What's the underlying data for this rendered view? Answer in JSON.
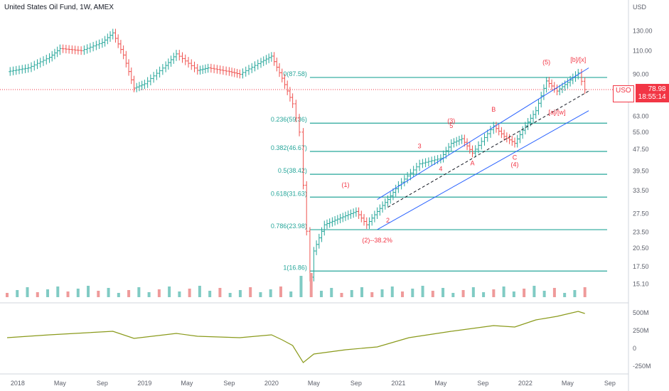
{
  "title": "United States Oil Fund, 1W, AMEX",
  "currency": "USD",
  "last_price": {
    "symbol": "USO",
    "value": "78.98",
    "countdown": "18:55:14",
    "color": "#f23645"
  },
  "chart_data": {
    "type": "line",
    "symbol": "USO",
    "interval": "1W",
    "exchange": "AMEX",
    "x_axis_labels": [
      "2018",
      "May",
      "Sep",
      "2019",
      "May",
      "Sep",
      "2020",
      "May",
      "Sep",
      "2021",
      "May",
      "Sep",
      "2022",
      "May",
      "Sep"
    ],
    "price_axis_labels": [
      "130.00",
      "110.00",
      "90.00",
      "63.00",
      "55.00",
      "47.50",
      "39.50",
      "33.50",
      "27.50",
      "23.50",
      "20.50",
      "17.50",
      "15.10"
    ],
    "price_axis_scale": "log",
    "price_range": [
      13.5,
      150
    ],
    "indicator_axis_labels": [
      "500M",
      "250M",
      "0",
      "-250M"
    ],
    "indicator_range": [
      -300,
      600
    ],
    "fib_levels": [
      {
        "label": "0(87.58)",
        "price": 87.58
      },
      {
        "label": "0.236(59.36)",
        "price": 59.36
      },
      {
        "label": "0.382(46.67)",
        "price": 46.67
      },
      {
        "label": "0.5(38.42)",
        "price": 38.42
      },
      {
        "label": "0.618(31.63)",
        "price": 31.63
      },
      {
        "label": "0.786(23.98)",
        "price": 23.98
      },
      {
        "label": "1(16.86)",
        "price": 16.86
      }
    ],
    "price_series": [
      {
        "t": "2017-12",
        "close": 92
      },
      {
        "t": "2018-02",
        "close": 95
      },
      {
        "t": "2018-04",
        "close": 104
      },
      {
        "t": "2018-05",
        "close": 112
      },
      {
        "t": "2018-07",
        "close": 110
      },
      {
        "t": "2018-09",
        "close": 118
      },
      {
        "t": "2018-10",
        "close": 128
      },
      {
        "t": "2018-11",
        "close": 106
      },
      {
        "t": "2018-12",
        "close": 80
      },
      {
        "t": "2019-01",
        "close": 83
      },
      {
        "t": "2019-03",
        "close": 97
      },
      {
        "t": "2019-04",
        "close": 107
      },
      {
        "t": "2019-06",
        "close": 93
      },
      {
        "t": "2019-07",
        "close": 95
      },
      {
        "t": "2019-09",
        "close": 92
      },
      {
        "t": "2019-10",
        "close": 90
      },
      {
        "t": "2019-12",
        "close": 100
      },
      {
        "t": "2020-01",
        "close": 105
      },
      {
        "t": "2020-02",
        "close": 87
      },
      {
        "t": "2020-03",
        "close": 70
      },
      {
        "t": "2020-03-20",
        "close": 55
      },
      {
        "t": "2020-04",
        "close": 35
      },
      {
        "t": "2020-04-20",
        "close": 16
      },
      {
        "t": "2020-05",
        "close": 20
      },
      {
        "t": "2020-06",
        "close": 25
      },
      {
        "t": "2020-07",
        "close": 26
      },
      {
        "t": "2020-08",
        "close": 27
      },
      {
        "t": "2020-09",
        "close": 28
      },
      {
        "t": "2020-10",
        "close": 25
      },
      {
        "t": "2020-11",
        "close": 28
      },
      {
        "t": "2020-12",
        "close": 31
      },
      {
        "t": "2021-01",
        "close": 35
      },
      {
        "t": "2021-03",
        "close": 42
      },
      {
        "t": "2021-05",
        "close": 44
      },
      {
        "t": "2021-06",
        "close": 50
      },
      {
        "t": "2021-07",
        "close": 52
      },
      {
        "t": "2021-08",
        "close": 46
      },
      {
        "t": "2021-10",
        "close": 58
      },
      {
        "t": "2021-11",
        "close": 53
      },
      {
        "t": "2021-12",
        "close": 50
      },
      {
        "t": "2022-01",
        "close": 58
      },
      {
        "t": "2022-02",
        "close": 66
      },
      {
        "t": "2022-03",
        "close": 85
      },
      {
        "t": "2022-04",
        "close": 78
      },
      {
        "t": "2022-05",
        "close": 84
      },
      {
        "t": "2022-06",
        "close": 91
      },
      {
        "t": "2022-06-20",
        "close": 79
      }
    ],
    "indicator_series": [
      {
        "t": "2017-12",
        "v": 150
      },
      {
        "t": "2018-04",
        "v": 190
      },
      {
        "t": "2018-10",
        "v": 240
      },
      {
        "t": "2018-12",
        "v": 140
      },
      {
        "t": "2019-04",
        "v": 210
      },
      {
        "t": "2019-06",
        "v": 170
      },
      {
        "t": "2019-10",
        "v": 150
      },
      {
        "t": "2020-01",
        "v": 190
      },
      {
        "t": "2020-02",
        "v": 120
      },
      {
        "t": "2020-03",
        "v": 40
      },
      {
        "t": "2020-04",
        "v": -200
      },
      {
        "t": "2020-05",
        "v": -80
      },
      {
        "t": "2020-08",
        "v": -20
      },
      {
        "t": "2020-11",
        "v": 20
      },
      {
        "t": "2021-02",
        "v": 150
      },
      {
        "t": "2021-06",
        "v": 240
      },
      {
        "t": "2021-10",
        "v": 320
      },
      {
        "t": "2021-12",
        "v": 300
      },
      {
        "t": "2022-02",
        "v": 400
      },
      {
        "t": "2022-04",
        "v": 450
      },
      {
        "t": "2022-06",
        "v": 520
      },
      {
        "t": "2022-06-20",
        "v": 490
      }
    ],
    "volume_bars": 58,
    "wave_labels": [
      {
        "text": "(1)",
        "t": "2020-08",
        "price": 34.5,
        "color": "#f23645"
      },
      {
        "text": "(2)--38.2%",
        "t": "2020-11",
        "price": 21.5,
        "color": "#f23645"
      },
      {
        "text": "2",
        "t": "2020-12",
        "price": 25.5,
        "color": "#f23645"
      },
      {
        "text": "3",
        "t": "2021-03",
        "price": 48,
        "color": "#f23645"
      },
      {
        "text": "4",
        "t": "2021-05",
        "price": 39.5,
        "color": "#f23645"
      },
      {
        "text": "5",
        "t": "2021-06",
        "price": 57,
        "color": "#f23645"
      },
      {
        "text": "(3)",
        "t": "2021-06",
        "price": 59.5,
        "color": "#f23645"
      },
      {
        "text": "B",
        "t": "2021-10",
        "price": 65.5,
        "color": "#f23645"
      },
      {
        "text": "A",
        "t": "2021-08",
        "price": 41.5,
        "color": "#f23645"
      },
      {
        "text": "C",
        "t": "2021-12",
        "price": 43.5,
        "color": "#f23645"
      },
      {
        "text": "(4)",
        "t": "2021-12",
        "price": 41,
        "color": "#f23645"
      },
      {
        "text": "(5)",
        "t": "2022-03",
        "price": 98,
        "color": "#f23645"
      },
      {
        "text": "[b]/[x]",
        "t": "2022-06",
        "price": 100,
        "color": "#f23645"
      },
      {
        "text": "[a]/[w]",
        "t": "2022-04",
        "price": 64,
        "color": "#f23645"
      }
    ]
  }
}
